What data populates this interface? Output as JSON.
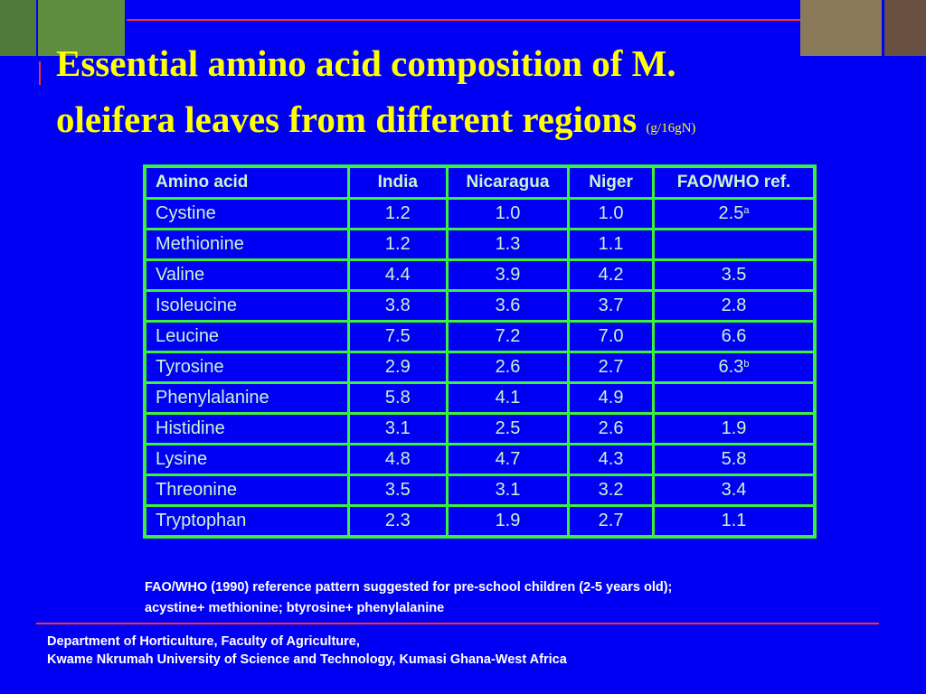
{
  "title": {
    "line1": "Essential amino acid composition of  M.",
    "line2": "oleifera leaves from different regions",
    "unit": "(g/16gN)"
  },
  "table": {
    "header": [
      "Amino acid",
      "India",
      "Nicaragua",
      "Niger",
      "FAO/WHO ref."
    ],
    "rows": [
      [
        "Cystine",
        "1.2",
        "1.0",
        "1.0",
        {
          "text": "2.5",
          "sup": "a"
        }
      ],
      [
        "Methionine",
        "1.2",
        "1.3",
        "1.1",
        null
      ],
      [
        "Valine",
        "4.4",
        "3.9",
        "4.2",
        "3.5"
      ],
      [
        "Isoleucine",
        "3.8",
        "3.6",
        "3.7",
        "2.8"
      ],
      [
        "Leucine",
        "7.5",
        "7.2",
        "7.0",
        "6.6"
      ],
      [
        "Tyrosine",
        "2.9",
        "2.6",
        "2.7",
        {
          "text": "6.3",
          "sup": "b"
        }
      ],
      [
        "Phenylalanine",
        "5.8",
        "4.1",
        "4.9",
        null
      ],
      [
        "Histidine",
        "3.1",
        "2.5",
        "2.6",
        "1.9"
      ],
      [
        "Lysine",
        "4.8",
        "4.7",
        "4.3",
        "5.8"
      ],
      [
        "Threonine",
        "3.5",
        "3.1",
        "3.2",
        "3.4"
      ],
      [
        "Tryptophan",
        "2.3",
        "1.9",
        "2.7",
        "1.1"
      ]
    ]
  },
  "footnote": [
    "FAO/WHO (1990) reference pattern suggested for pre-school children (2-5 years old);",
    "acystine+ methionine; btyrosine+ phenylalanine"
  ],
  "footer": [
    "Department of Horticulture, Faculty of Agriculture,",
    "Kwame Nkrumah  University of  Science and Technology, Kumasi Ghana-West Africa"
  ]
}
